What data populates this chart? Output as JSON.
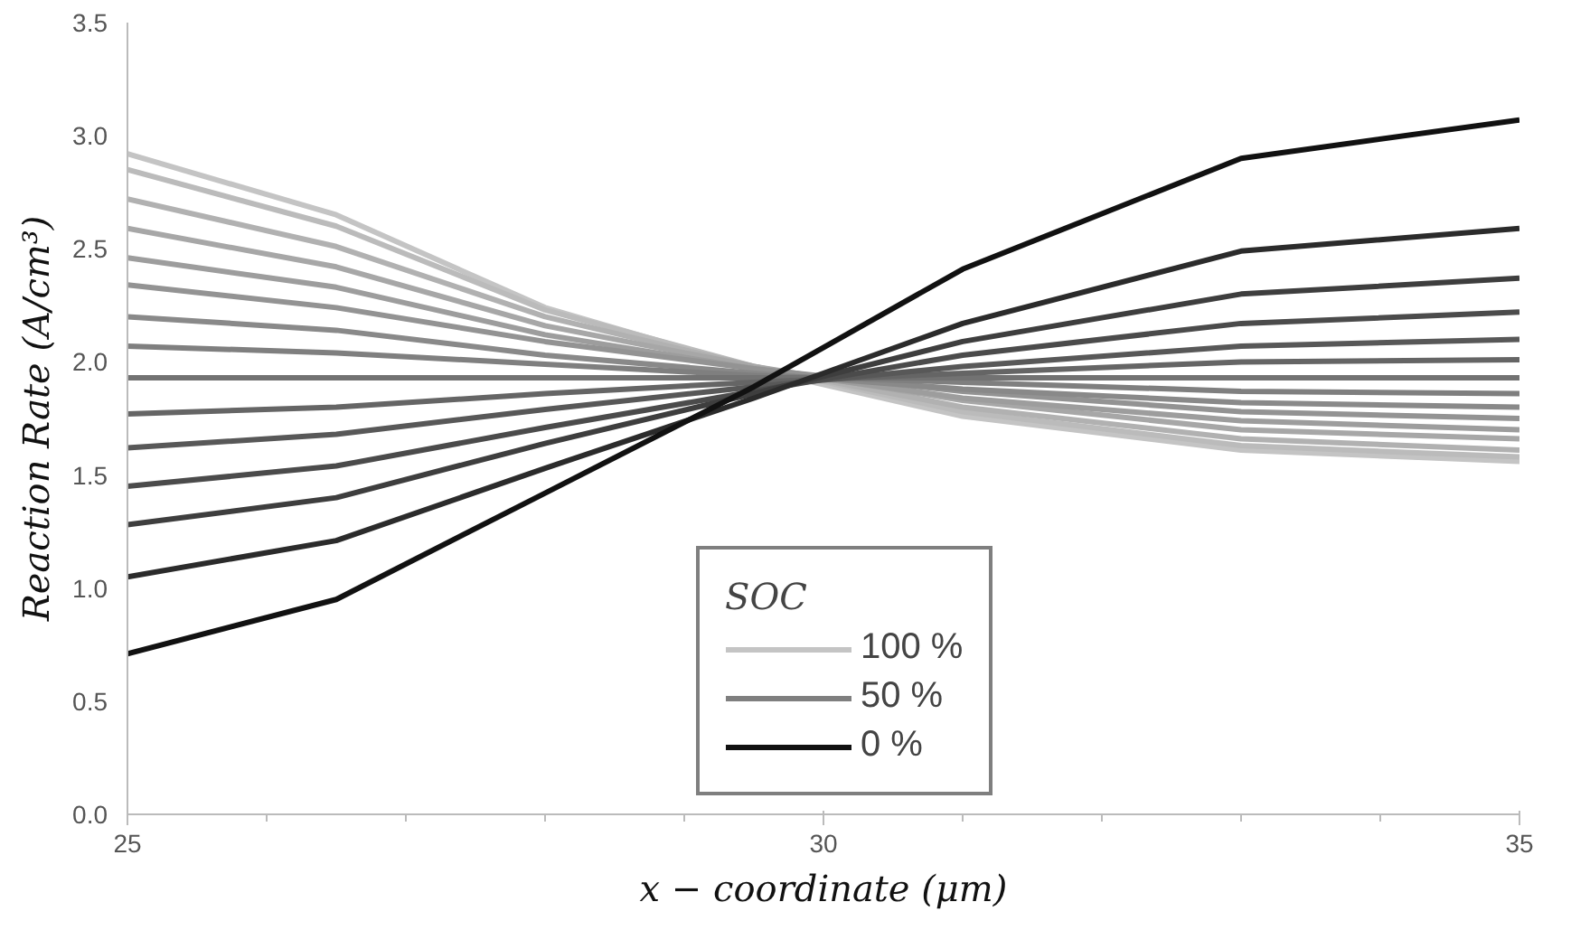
{
  "chart_data": {
    "type": "line",
    "xlabel": "x − coordinate (μm)",
    "ylabel": "Reaction Rate (A/cm³)",
    "legend_title": "SOC",
    "x": [
      25,
      26.5,
      28,
      29.5,
      31,
      33,
      35
    ],
    "xlim": [
      25,
      35
    ],
    "xticks": [
      25,
      30,
      35
    ],
    "ylim": [
      0,
      3.5
    ],
    "yticks": [
      {
        "value": 0,
        "label": "0.0"
      },
      0.5,
      {
        "value": 1,
        "label": "1.0"
      },
      1.5,
      {
        "value": 2,
        "label": "2.0"
      },
      2.5,
      {
        "value": 3,
        "label": "3.0"
      },
      3.5
    ],
    "grid": false,
    "legend": "bottom",
    "marker": "none",
    "line_style": "solid",
    "series": [
      {
        "name": "100 %",
        "color": "#c4c4c4",
        "values": [
          2.92,
          2.65,
          2.24,
          1.97,
          1.76,
          1.61,
          1.56
        ]
      },
      {
        "color": "#bbbbbb",
        "values": [
          2.85,
          2.6,
          2.23,
          1.98,
          1.78,
          1.63,
          1.58
        ]
      },
      {
        "color": "#b1b1b1",
        "values": [
          2.72,
          2.51,
          2.2,
          1.98,
          1.8,
          1.66,
          1.61
        ]
      },
      {
        "color": "#a7a7a7",
        "values": [
          2.59,
          2.42,
          2.16,
          1.98,
          1.83,
          1.7,
          1.66
        ]
      },
      {
        "color": "#9d9d9d",
        "values": [
          2.46,
          2.33,
          2.12,
          1.97,
          1.84,
          1.74,
          1.7
        ]
      },
      {
        "color": "#939393",
        "values": [
          2.34,
          2.24,
          2.09,
          1.97,
          1.87,
          1.78,
          1.75
        ]
      },
      {
        "color": "#898989",
        "values": [
          2.2,
          2.14,
          2.03,
          1.95,
          1.88,
          1.82,
          1.8
        ]
      },
      {
        "name": "50 %",
        "color": "#7f7f7f",
        "values": [
          2.07,
          2.04,
          1.99,
          1.94,
          1.91,
          1.87,
          1.86
        ]
      },
      {
        "color": "#727272",
        "values": [
          1.93,
          1.93,
          1.93,
          1.93,
          1.93,
          1.93,
          1.93
        ]
      },
      {
        "color": "#656565",
        "values": [
          1.77,
          1.8,
          1.86,
          1.91,
          1.95,
          2.0,
          2.01
        ]
      },
      {
        "color": "#585858",
        "values": [
          1.62,
          1.68,
          1.79,
          1.89,
          1.98,
          2.07,
          2.1
        ]
      },
      {
        "color": "#4b4b4b",
        "values": [
          1.45,
          1.54,
          1.71,
          1.87,
          2.03,
          2.17,
          2.22
        ]
      },
      {
        "color": "#3e3e3e",
        "values": [
          1.28,
          1.4,
          1.64,
          1.86,
          2.09,
          2.3,
          2.37
        ]
      },
      {
        "color": "#2b2b2b",
        "values": [
          1.05,
          1.21,
          1.53,
          1.84,
          2.17,
          2.49,
          2.59
        ]
      },
      {
        "name": "0 %",
        "color": "#111111",
        "values": [
          0.71,
          0.95,
          1.42,
          1.89,
          2.41,
          2.9,
          3.07
        ]
      }
    ]
  }
}
